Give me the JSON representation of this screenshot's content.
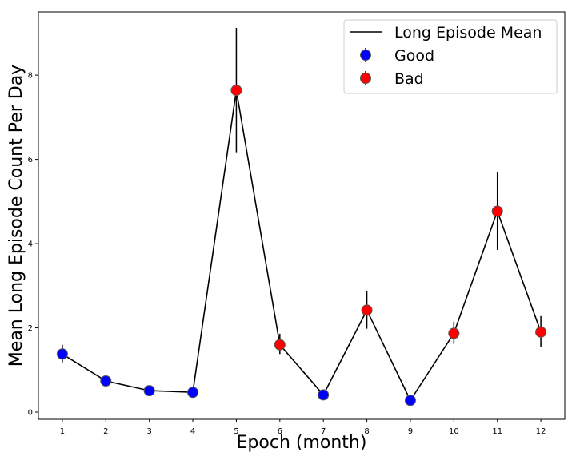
{
  "chart_data": {
    "type": "line",
    "title": "",
    "xlabel": "Epoch (month)",
    "ylabel": "Mean Long Episode Count Per Day",
    "x": [
      1,
      2,
      3,
      4,
      5,
      6,
      7,
      8,
      9,
      10,
      11,
      12
    ],
    "x_ticks": [
      "1",
      "2",
      "3",
      "4",
      "5",
      "6",
      "7",
      "8",
      "9",
      "10",
      "11",
      "12"
    ],
    "y_ticks": [
      "0",
      "2",
      "4",
      "6",
      "8"
    ],
    "xlim": [
      0.45,
      12.55
    ],
    "ylim": [
      -0.17,
      9.5
    ],
    "grid": false,
    "legend_position": "top-right",
    "series": [
      {
        "name": "Long Episode Mean",
        "kind": "line",
        "color": "#000000",
        "values": [
          1.38,
          0.74,
          0.51,
          0.47,
          7.64,
          1.6,
          0.41,
          2.42,
          0.28,
          1.87,
          4.77,
          1.9
        ]
      },
      {
        "name": "Good",
        "kind": "points_with_error",
        "color": "#0000ff",
        "x": [
          1,
          2,
          3,
          4,
          7,
          9
        ],
        "values": [
          1.38,
          0.74,
          0.51,
          0.47,
          0.41,
          0.28
        ],
        "err_low": [
          1.18,
          0.66,
          0.45,
          0.42,
          0.35,
          0.22
        ],
        "err_high": [
          1.6,
          0.82,
          0.57,
          0.52,
          0.47,
          0.34
        ]
      },
      {
        "name": "Bad",
        "kind": "points_with_error",
        "color": "#ff0000",
        "x": [
          5,
          6,
          8,
          10,
          11,
          12
        ],
        "values": [
          7.64,
          1.6,
          2.42,
          1.87,
          4.77,
          1.9
        ],
        "err_low": [
          6.17,
          1.38,
          1.98,
          1.62,
          3.85,
          1.55
        ],
        "err_high": [
          9.12,
          1.86,
          2.87,
          2.15,
          5.7,
          2.28
        ]
      }
    ]
  }
}
